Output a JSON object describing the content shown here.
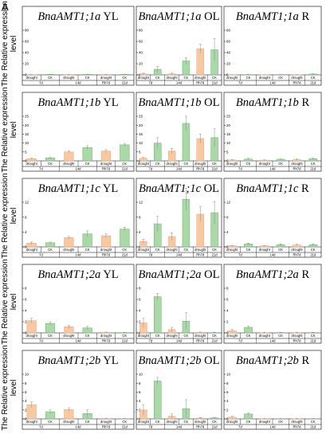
{
  "figure_label": "A",
  "colors": {
    "drought": "#f8c9a1",
    "ck": "#a8d9a6",
    "drought_edge": "#e8a77a",
    "ck_edge": "#6fae6c",
    "error": "#888888"
  },
  "chart_data": {
    "type": "bar",
    "ylabel_line1": "The Relative expression",
    "ylabel_line2": "level",
    "categories": [
      "drought",
      "CK",
      "drought",
      "CK",
      "drought",
      "CK"
    ],
    "time_labels": [
      "7d",
      "14d",
      "Rh7d",
      "21d"
    ],
    "rows": [
      {
        "ylim": [
          0,
          80
        ],
        "yticks": [
          0,
          20,
          40,
          60,
          80
        ],
        "panels": [
          {
            "gene": "BnaAMT1;1a",
            "tissue": "YL",
            "values": [
              0.5,
              0.8,
              0.6,
              0.9,
              0.7,
              1.0
            ],
            "errors": [
              0.3,
              0.3,
              0.3,
              0.3,
              0.3,
              0.3
            ]
          },
          {
            "gene": "BnaAMT1;1a",
            "tissue": "OL",
            "values": [
              2,
              10,
              2,
              25,
              47,
              45
            ],
            "errors": [
              1,
              5,
              1,
              6,
              8,
              20
            ]
          },
          {
            "gene": "BnaAMT1;1a",
            "tissue": "R",
            "values": [
              0.3,
              0.5,
              0.3,
              0.5,
              0.4,
              1.5
            ],
            "errors": [
              0.2,
              0.3,
              0.2,
              0.2,
              0.2,
              0.5
            ]
          }
        ]
      },
      {
        "ylim": [
          0,
          25
        ],
        "yticks": [
          0,
          5,
          10,
          15,
          20,
          25
        ],
        "panels": [
          {
            "gene": "BnaAMT1;1b",
            "tissue": "YL",
            "values": [
              1.2,
              1.6,
              5,
              7.5,
              5.5,
              9
            ],
            "errors": [
              0.3,
              0.3,
              0.5,
              1.0,
              0.8,
              0.8
            ]
          },
          {
            "gene": "BnaAMT1;1b",
            "tissue": "OL",
            "values": [
              1.5,
              10,
              5.5,
              21,
              12.5,
              13
            ],
            "errors": [
              0.5,
              3,
              1.5,
              4,
              2.5,
              5
            ]
          },
          {
            "gene": "BnaAMT1;1b",
            "tissue": "R",
            "values": [
              0.5,
              1.0,
              0.4,
              0.9,
              0.7,
              1.2
            ],
            "errors": [
              0.2,
              0.4,
              0.2,
              0.2,
              0.3,
              0.5
            ]
          }
        ]
      },
      {
        "ylim": [
          0,
          12
        ],
        "yticks": [
          0,
          4,
          8,
          12
        ],
        "panels": [
          {
            "gene": "BnaAMT1;1c",
            "tissue": "YL",
            "values": [
              1,
              1.1,
              2.5,
              3.5,
              3,
              4.8
            ],
            "errors": [
              0.3,
              0.2,
              0.3,
              0.8,
              0.5,
              0.5
            ]
          },
          {
            "gene": "BnaAMT1;1c",
            "tissue": "OL",
            "values": [
              1.5,
              6.2,
              2.8,
              12.8,
              8.8,
              9.2
            ],
            "errors": [
              0.5,
              2,
              1,
              3,
              2,
              3
            ]
          },
          {
            "gene": "BnaAMT1;1c",
            "tissue": "R",
            "values": [
              0.3,
              0.8,
              0.3,
              0.6,
              0.5,
              0.6
            ],
            "errors": [
              0.1,
              0.2,
              0.1,
              0.2,
              0.2,
              0.2
            ]
          }
        ]
      },
      {
        "ylim": [
          0,
          8
        ],
        "yticks": [
          0,
          2,
          4,
          6,
          8
        ],
        "panels": [
          {
            "gene": "BnaAMT1;2a",
            "tissue": "YL",
            "values": [
              2.2,
              1.7,
              1.1,
              0.9,
              0.1,
              0.05
            ],
            "errors": [
              0.4,
              0.3,
              0.3,
              0.3,
              0.05,
              0.05
            ]
          },
          {
            "gene": "BnaAMT1;2a",
            "tissue": "OL",
            "values": [
              1.8,
              6.5,
              0.6,
              2.1,
              0.1,
              0.05
            ],
            "errors": [
              0.8,
              0.6,
              0.4,
              1.5,
              0.05,
              0.05
            ]
          },
          {
            "gene": "BnaAMT1;2a",
            "tissue": "R",
            "values": [
              0.4,
              1.0,
              0.05,
              0.05,
              0.05,
              0.05
            ],
            "errors": [
              0.2,
              0.2,
              0.05,
              0.05,
              0.05,
              0.05
            ]
          }
        ]
      },
      {
        "ylim": [
          0,
          10
        ],
        "yticks": [
          0,
          2,
          4,
          6,
          8,
          10
        ],
        "panels": [
          {
            "gene": "BnaAMT1;2b",
            "tissue": "YL",
            "values": [
              3.2,
              1.6,
              2.1,
              1.2,
              0.1,
              0.05
            ],
            "errors": [
              0.6,
              0.4,
              0.4,
              0.8,
              0.05,
              0.05
            ]
          },
          {
            "gene": "BnaAMT1;2b",
            "tissue": "OL",
            "values": [
              2,
              8.5,
              0.6,
              2.3,
              0.2,
              0.25
            ],
            "errors": [
              1.2,
              0.8,
              0.5,
              2,
              0.1,
              0.1
            ]
          },
          {
            "gene": "BnaAMT1;2b",
            "tissue": "R",
            "values": [
              0.4,
              1.1,
              0.05,
              0.05,
              0.05,
              0.05
            ],
            "errors": [
              0.2,
              0.2,
              0.05,
              0.05,
              0.05,
              0.05
            ]
          }
        ]
      }
    ]
  }
}
